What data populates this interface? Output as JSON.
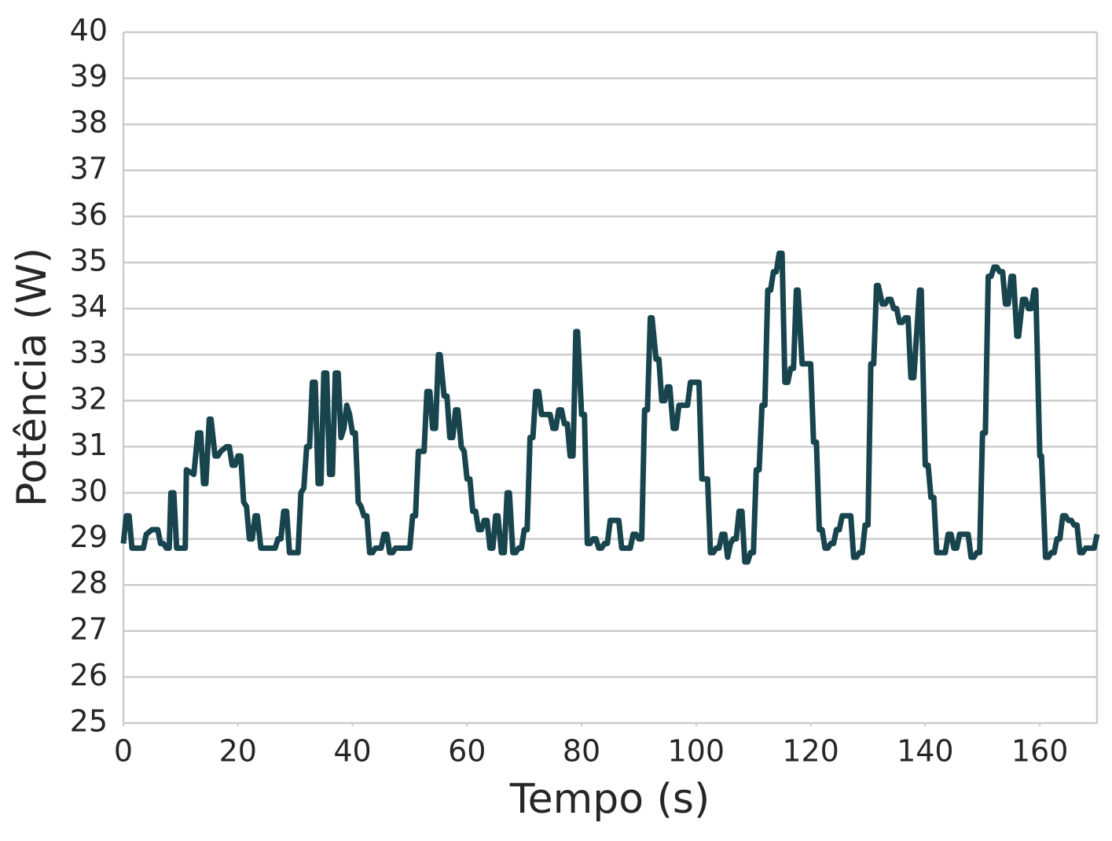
{
  "chart_data": {
    "type": "line",
    "xlabel": "Tempo (s)",
    "ylabel": "Potência (W)",
    "color": "#17444d",
    "grid": true,
    "xlim": [
      0,
      170
    ],
    "xticks": [
      0,
      20,
      40,
      60,
      80,
      100,
      120,
      140,
      160
    ],
    "ylim": [
      25,
      40
    ],
    "yticks": [
      25,
      26,
      27,
      28,
      29,
      30,
      31,
      32,
      33,
      34,
      35,
      36,
      37,
      38,
      39,
      40
    ],
    "x": [
      0,
      0.5,
      1,
      1.5,
      3.5,
      4,
      5,
      6,
      6.5,
      7,
      7.5,
      8,
      8.3,
      8.8,
      9.3,
      10.8,
      11,
      12.3,
      13,
      13.5,
      14,
      14.4,
      15,
      15.3,
      16,
      16.5,
      17,
      18,
      18.5,
      19,
      19.5,
      20,
      20.5,
      21,
      21.5,
      22,
      22.5,
      23,
      23.4,
      24,
      26.5,
      27,
      27.5,
      28,
      28.5,
      29,
      30.5,
      31,
      31.5,
      32,
      32.5,
      33,
      33.5,
      34,
      34.5,
      35,
      35.5,
      36,
      36.5,
      37,
      37.5,
      38,
      38.5,
      39,
      39.5,
      40,
      40.5,
      41,
      41.5,
      42,
      42.5,
      43,
      43.5,
      44,
      45,
      45.5,
      46,
      46.5,
      47,
      47.5,
      50,
      50.5,
      51,
      51.5,
      52.5,
      53,
      53.5,
      54,
      54.5,
      55,
      55.3,
      56,
      56.5,
      57,
      57.5,
      58,
      58.4,
      59,
      59.5,
      60,
      60.5,
      61,
      61.5,
      62,
      62.5,
      63,
      63.5,
      64,
      64.5,
      65,
      65.4,
      66,
      66.5,
      67,
      67.4,
      68,
      68.5,
      69,
      69.5,
      70,
      70.5,
      71,
      71.5,
      72,
      72.5,
      73,
      74.5,
      75,
      75.5,
      76,
      76.5,
      77,
      77.5,
      78,
      78.5,
      79,
      79.3,
      80,
      80.5,
      81,
      81.5,
      82,
      82.5,
      83,
      83.5,
      84,
      84.5,
      85,
      86.5,
      87,
      88.5,
      89,
      89.5,
      90,
      90.5,
      91,
      91.5,
      92,
      92.3,
      93,
      93.5,
      94,
      94.5,
      95,
      95.4,
      96,
      96.5,
      97,
      98.5,
      99,
      100.5,
      101,
      102,
      102.5,
      103,
      103.5,
      104,
      104.5,
      105,
      105.5,
      106,
      106.5,
      107,
      107.5,
      108,
      108.5,
      109,
      109.5,
      110,
      110.5,
      111,
      111.5,
      112,
      112.5,
      113,
      113.5,
      114,
      114.5,
      115,
      115.5,
      116,
      116.5,
      117,
      117.5,
      117.8,
      118.5,
      120,
      120.5,
      121,
      121.5,
      122,
      122.5,
      123,
      123.5,
      124,
      124.5,
      125,
      125.5,
      127,
      127.5,
      128,
      128.5,
      129,
      129.5,
      130,
      130.5,
      131,
      131.5,
      131.8,
      132.5,
      133,
      133.5,
      134,
      134.5,
      135,
      135.5,
      136,
      136.5,
      137,
      137.5,
      138,
      139,
      139.3,
      140,
      140.5,
      141,
      141.5,
      142,
      143.5,
      144,
      144.5,
      145,
      145.5,
      146,
      147.5,
      148,
      148.5,
      149,
      149.5,
      150,
      150.5,
      151,
      151.5,
      152,
      152.5,
      153,
      153.5,
      154,
      154.5,
      155,
      155.4,
      156,
      156.3,
      157,
      157.5,
      158,
      158.5,
      159,
      159.3,
      160,
      160.3,
      161,
      161.5,
      162,
      162.5,
      163,
      163.5,
      164,
      164.5,
      165,
      165.5,
      166,
      166.5,
      167,
      167.5,
      168,
      169.5,
      170
    ],
    "values": [
      28.9,
      29.5,
      29.5,
      28.8,
      28.8,
      29.1,
      29.2,
      29.2,
      28.9,
      28.9,
      28.8,
      28.8,
      30.0,
      30.0,
      28.8,
      28.8,
      30.5,
      30.4,
      31.3,
      31.3,
      30.2,
      30.2,
      31.6,
      31.6,
      30.8,
      30.8,
      30.9,
      31.0,
      31.0,
      30.6,
      30.6,
      30.8,
      30.8,
      29.8,
      29.7,
      29.0,
      29.0,
      29.5,
      29.5,
      28.8,
      28.8,
      29.0,
      29.0,
      29.6,
      29.6,
      28.7,
      28.7,
      30.0,
      30.1,
      31.0,
      31.0,
      32.4,
      32.4,
      30.2,
      30.2,
      32.6,
      32.6,
      30.4,
      30.4,
      32.6,
      32.6,
      31.2,
      31.4,
      31.9,
      31.7,
      31.3,
      31.3,
      29.8,
      29.7,
      29.5,
      29.5,
      28.7,
      28.7,
      28.8,
      28.8,
      29.1,
      29.1,
      28.7,
      28.7,
      28.8,
      28.8,
      29.5,
      29.5,
      30.9,
      30.9,
      32.2,
      32.2,
      31.4,
      31.4,
      33.0,
      33.0,
      32.1,
      32.1,
      31.2,
      31.2,
      31.8,
      31.8,
      31.0,
      30.9,
      30.3,
      30.3,
      29.6,
      29.6,
      29.2,
      29.2,
      29.4,
      29.4,
      28.8,
      28.8,
      29.5,
      29.5,
      28.7,
      28.7,
      30.0,
      30.0,
      28.7,
      28.7,
      28.8,
      28.8,
      29.2,
      29.2,
      31.2,
      31.2,
      32.2,
      32.2,
      31.7,
      31.7,
      31.4,
      31.4,
      31.8,
      31.8,
      31.5,
      31.5,
      30.8,
      30.8,
      33.5,
      33.5,
      31.7,
      31.7,
      28.9,
      28.9,
      29.0,
      29.0,
      28.8,
      28.8,
      28.9,
      28.9,
      29.4,
      29.4,
      28.8,
      28.8,
      29.1,
      29.1,
      29.0,
      29.0,
      31.8,
      31.8,
      33.8,
      33.8,
      32.9,
      32.9,
      32.0,
      32.0,
      32.3,
      32.3,
      31.4,
      31.4,
      31.9,
      31.9,
      32.4,
      32.4,
      30.3,
      30.3,
      28.7,
      28.7,
      28.8,
      28.8,
      29.1,
      29.1,
      28.6,
      28.9,
      29.0,
      29.0,
      29.6,
      29.6,
      28.5,
      28.5,
      28.7,
      28.7,
      30.5,
      30.5,
      31.9,
      31.9,
      34.4,
      34.4,
      34.8,
      34.8,
      35.2,
      35.2,
      32.4,
      32.4,
      32.7,
      32.7,
      34.4,
      34.4,
      32.8,
      32.8,
      31.1,
      31.1,
      29.2,
      29.2,
      28.8,
      28.8,
      28.9,
      28.9,
      29.2,
      29.2,
      29.5,
      29.5,
      28.6,
      28.6,
      28.7,
      28.7,
      29.3,
      29.3,
      32.8,
      32.8,
      34.5,
      34.5,
      34.1,
      34.1,
      34.2,
      34.2,
      34.0,
      34.0,
      33.7,
      33.7,
      33.8,
      33.8,
      32.5,
      32.5,
      34.4,
      34.4,
      30.6,
      30.6,
      29.9,
      29.9,
      28.7,
      28.7,
      29.1,
      29.1,
      28.8,
      28.8,
      29.1,
      29.1,
      28.6,
      28.6,
      28.7,
      28.7,
      31.3,
      31.3,
      34.7,
      34.7,
      34.9,
      34.9,
      34.8,
      34.8,
      34.1,
      34.1,
      34.7,
      34.7,
      33.4,
      33.4,
      34.2,
      34.2,
      34.0,
      34.0,
      34.4,
      34.4,
      30.8,
      30.8,
      28.6,
      28.6,
      28.7,
      28.7,
      29.0,
      29.0,
      29.5,
      29.5,
      29.4,
      29.4,
      29.3,
      29.3,
      28.7,
      28.7,
      28.8,
      28.8,
      29.1
    ]
  }
}
